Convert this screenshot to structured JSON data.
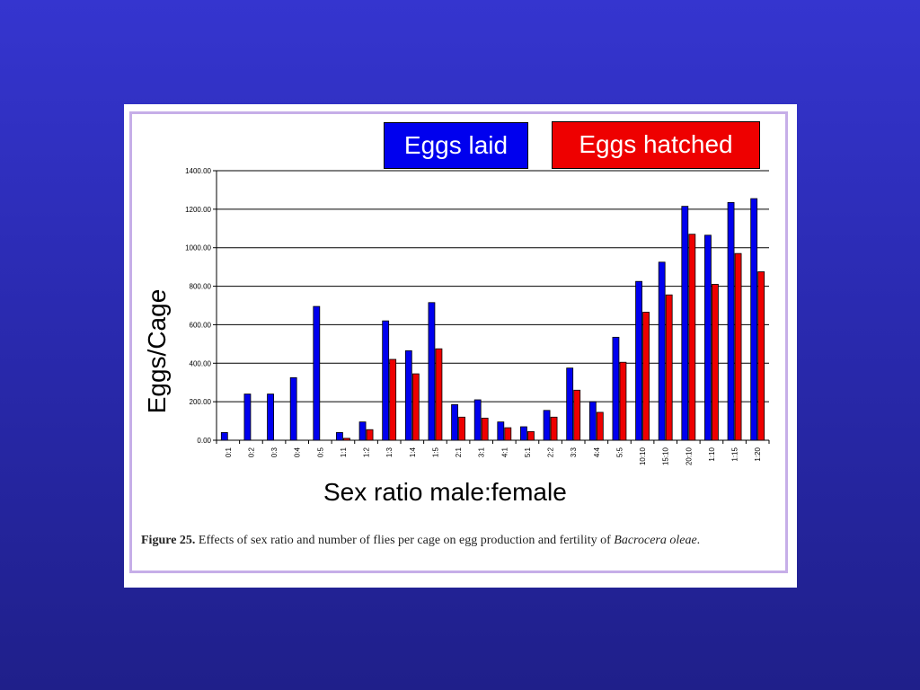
{
  "colors": {
    "eggs_laid": "#0000ee",
    "eggs_hatched": "#ee0000",
    "panel_border": "#c6aee8",
    "background": "#2a2ab0"
  },
  "caption": {
    "label": "Figure 25.",
    "text": "Effects of sex ratio and number of flies per cage on egg production and fertility of",
    "species": "Bacrocera oleae",
    "end": "."
  },
  "chart_data": {
    "type": "bar",
    "xlabel": "Sex ratio male:female",
    "ylabel": "Eggs/Cage",
    "ylim": [
      0,
      1400
    ],
    "yticks": [
      "0.00",
      "200.00",
      "400.00",
      "600.00",
      "800.00",
      "1000.00",
      "1200.00",
      "1400.00"
    ],
    "grid": true,
    "legend_position": "top-right",
    "categories": [
      "0:1",
      "0:2",
      "0:3",
      "0:4",
      "0:5",
      "1:1",
      "1:2",
      "1:3",
      "1:4",
      "1:5",
      "2:1",
      "3:1",
      "4:1",
      "5:1",
      "2:2",
      "3:3",
      "4:4",
      "5:5",
      "10:10",
      "15:10",
      "20:10",
      "1:10",
      "1:15",
      "1:20"
    ],
    "series": [
      {
        "name": "Eggs laid",
        "color": "#0000ee",
        "values": [
          40,
          240,
          240,
          325,
          695,
          40,
          95,
          620,
          465,
          715,
          185,
          210,
          95,
          70,
          155,
          375,
          200,
          535,
          825,
          925,
          1215,
          1065,
          1235,
          1255
        ]
      },
      {
        "name": "Eggs hatched",
        "color": "#ee0000",
        "values": [
          0,
          0,
          0,
          0,
          0,
          10,
          55,
          420,
          345,
          475,
          120,
          115,
          65,
          45,
          120,
          260,
          145,
          405,
          665,
          755,
          1070,
          810,
          970,
          875
        ]
      }
    ]
  }
}
